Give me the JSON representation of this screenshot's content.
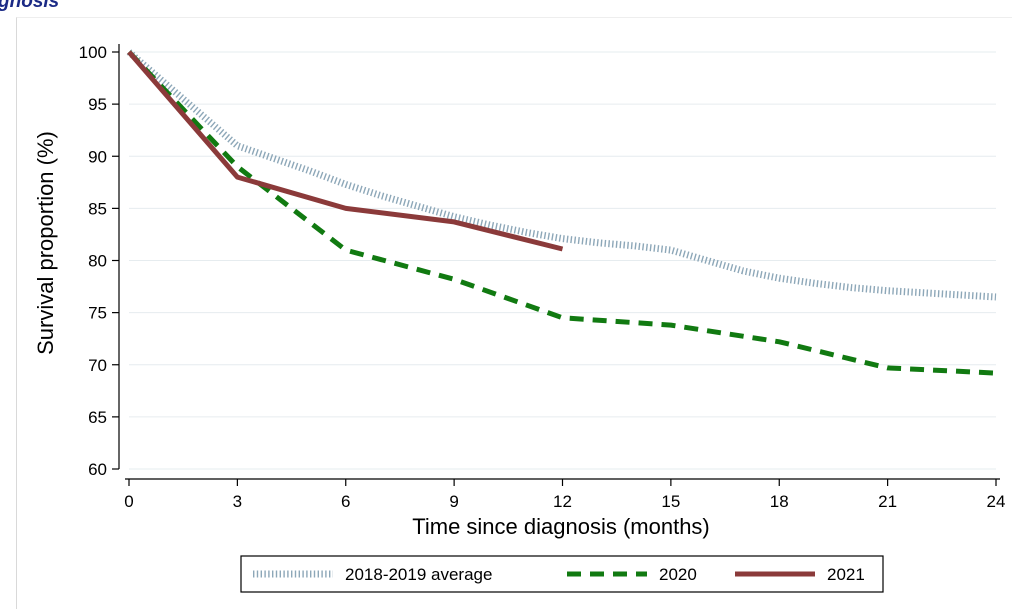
{
  "header": {
    "text": "gnosis"
  },
  "chart_data": {
    "type": "line",
    "title": "",
    "xlabel": "Time since diagnosis (months)",
    "ylabel": "Survival proportion (%)",
    "xlim": [
      0,
      24
    ],
    "ylim": [
      60,
      100
    ],
    "xticks": [
      0,
      3,
      6,
      9,
      12,
      15,
      18,
      21,
      24
    ],
    "yticks": [
      60,
      65,
      70,
      75,
      80,
      85,
      90,
      95,
      100
    ],
    "grid": true,
    "legend_position": "bottom",
    "series": [
      {
        "name": "2018-2019 average",
        "color": "#8da7b8",
        "style": "dotted",
        "x": [
          0,
          1,
          2,
          3,
          4,
          5,
          6,
          7,
          8,
          9,
          10,
          11,
          12,
          13,
          14,
          15,
          16,
          17,
          18,
          19,
          20,
          21,
          22,
          23,
          24
        ],
        "y": [
          100,
          97,
          94,
          91,
          89.8,
          88.6,
          87.3,
          86.2,
          85.2,
          84.2,
          83.4,
          82.7,
          82.1,
          81.7,
          81.4,
          81.0,
          80.0,
          79.0,
          78.3,
          77.8,
          77.4,
          77.1,
          76.9,
          76.7,
          76.5
        ]
      },
      {
        "name": "2020",
        "color": "#117a11",
        "style": "dashed",
        "x": [
          0,
          3,
          6,
          9,
          12,
          15,
          18,
          21,
          24
        ],
        "y": [
          100,
          89,
          81,
          78.2,
          74.5,
          73.8,
          72.2,
          69.7,
          69.2
        ]
      },
      {
        "name": "2021",
        "color": "#8b3a3a",
        "style": "solid",
        "x": [
          0,
          3,
          6,
          9,
          12
        ],
        "y": [
          100,
          88,
          85,
          83.7,
          81.1
        ]
      }
    ]
  }
}
